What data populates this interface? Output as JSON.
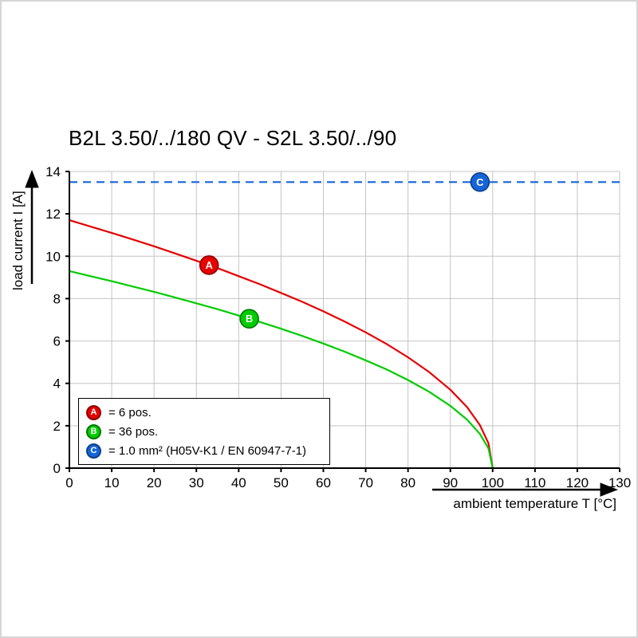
{
  "chart_data": {
    "type": "line",
    "title": "B2L 3.50/../180 QV - S2L 3.50/../90",
    "xlabel": "ambient temperature T [°C]",
    "ylabel": "load current I [A]",
    "xlim": [
      0,
      130
    ],
    "ylim": [
      0,
      14
    ],
    "grid": true,
    "grid_color": "#c4c4c4",
    "axis_color": "#000000",
    "x_ticks": [
      0,
      10,
      20,
      30,
      40,
      50,
      60,
      70,
      80,
      90,
      100,
      110,
      120,
      130
    ],
    "y_ticks": [
      0,
      2,
      4,
      6,
      8,
      10,
      12,
      14
    ],
    "series": [
      {
        "name": "A",
        "label": "6 pos.",
        "color": "#e60000",
        "edge": "#8f0000",
        "style": "solid",
        "points": [
          [
            0,
            11.7
          ],
          [
            5,
            11.4
          ],
          [
            10,
            11.1
          ],
          [
            15,
            10.79
          ],
          [
            20,
            10.47
          ],
          [
            25,
            10.13
          ],
          [
            30,
            9.79
          ],
          [
            35,
            9.44
          ],
          [
            40,
            9.06
          ],
          [
            45,
            8.68
          ],
          [
            50,
            8.27
          ],
          [
            55,
            7.85
          ],
          [
            60,
            7.4
          ],
          [
            65,
            6.92
          ],
          [
            70,
            6.41
          ],
          [
            75,
            5.85
          ],
          [
            80,
            5.23
          ],
          [
            85,
            4.53
          ],
          [
            90,
            3.7
          ],
          [
            94,
            2.87
          ],
          [
            97,
            2.03
          ],
          [
            99,
            1.17
          ],
          [
            100,
            0
          ]
        ]
      },
      {
        "name": "B",
        "label": "36 pos.",
        "color": "#00cc00",
        "edge": "#007700",
        "style": "solid",
        "points": [
          [
            0,
            9.3
          ],
          [
            5,
            9.06
          ],
          [
            10,
            8.82
          ],
          [
            15,
            8.57
          ],
          [
            20,
            8.32
          ],
          [
            25,
            8.05
          ],
          [
            30,
            7.78
          ],
          [
            35,
            7.5
          ],
          [
            40,
            7.2
          ],
          [
            45,
            6.9
          ],
          [
            50,
            6.58
          ],
          [
            55,
            6.24
          ],
          [
            60,
            5.88
          ],
          [
            65,
            5.5
          ],
          [
            70,
            5.09
          ],
          [
            75,
            4.65
          ],
          [
            80,
            4.16
          ],
          [
            85,
            3.6
          ],
          [
            90,
            2.94
          ],
          [
            94,
            2.28
          ],
          [
            97,
            1.61
          ],
          [
            99,
            0.93
          ],
          [
            100,
            0
          ]
        ]
      },
      {
        "name": "C",
        "label": "1.0 mm² (H05V-K1 / EN 60947-7-1)",
        "color": "#1565d8",
        "edge": "#0d3f8a",
        "style": "dashed",
        "points": [
          [
            0,
            13.5
          ],
          [
            130,
            13.5
          ]
        ]
      }
    ],
    "markers": [
      {
        "series": "A",
        "letter": "A",
        "x": 33,
        "y": 9.58
      },
      {
        "series": "B",
        "letter": "B",
        "x": 42.5,
        "y": 7.05
      },
      {
        "series": "C",
        "letter": "C",
        "x": 97,
        "y": 13.5
      }
    ],
    "legend": [
      {
        "letter": "A",
        "text": "= 6 pos."
      },
      {
        "letter": "B",
        "text": "= 36 pos."
      },
      {
        "letter": "C",
        "text": "= 1.0 mm² (H05V-K1 / EN 60947-7-1)"
      }
    ],
    "legend_position": "bottom-left"
  }
}
